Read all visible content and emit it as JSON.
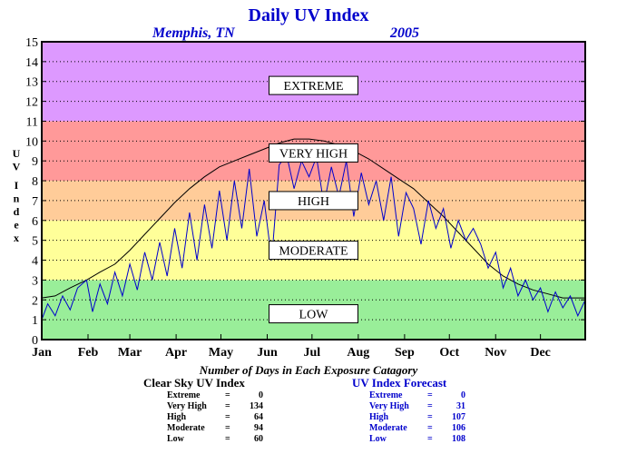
{
  "chart_data": {
    "type": "line",
    "title": "Daily UV Index",
    "subtitle_left": "Memphis, TN",
    "subtitle_right": "2005",
    "ylabel": "UV Index",
    "ylim": [
      0,
      15
    ],
    "yticks": [
      0,
      1,
      2,
      3,
      4,
      5,
      6,
      7,
      8,
      9,
      10,
      11,
      12,
      13,
      14,
      15
    ],
    "xlim": [
      1,
      365
    ],
    "months": [
      "Jan",
      "Feb",
      "Mar",
      "Apr",
      "May",
      "Jun",
      "Jul",
      "Aug",
      "Sep",
      "Oct",
      "Nov",
      "Dec"
    ],
    "month_start_days": [
      1,
      32,
      60,
      91,
      121,
      152,
      182,
      213,
      244,
      274,
      305,
      335
    ],
    "bands": [
      {
        "label": "LOW",
        "from": 0,
        "to": 3,
        "color": "#99ee99"
      },
      {
        "label": "MODERATE",
        "from": 3,
        "to": 6,
        "color": "#ffff99"
      },
      {
        "label": "HIGH",
        "from": 6,
        "to": 8,
        "color": "#ffcc99"
      },
      {
        "label": "VERY HIGH",
        "from": 8,
        "to": 11,
        "color": "#ff9999"
      },
      {
        "label": "EXTREME",
        "from": 11,
        "to": 15,
        "color": "#dd99ff"
      }
    ],
    "band_label_values": [
      1.3,
      4.5,
      7.0,
      9.4,
      12.8
    ],
    "series": [
      {
        "name": "Clear Sky UV Index",
        "color": "#000000",
        "x": [
          1,
          10,
          20,
          31,
          40,
          50,
          60,
          70,
          80,
          90,
          100,
          110,
          120,
          130,
          140,
          150,
          160,
          170,
          180,
          190,
          200,
          210,
          220,
          230,
          240,
          250,
          260,
          270,
          280,
          290,
          300,
          310,
          320,
          330,
          340,
          350,
          365
        ],
        "y": [
          2.1,
          2.2,
          2.6,
          3.0,
          3.4,
          3.8,
          4.5,
          5.3,
          6.1,
          6.9,
          7.6,
          8.2,
          8.7,
          9.0,
          9.3,
          9.6,
          9.9,
          10.1,
          10.1,
          10.0,
          9.8,
          9.5,
          9.1,
          8.6,
          8.1,
          7.6,
          6.9,
          6.2,
          5.4,
          4.6,
          3.8,
          3.2,
          2.8,
          2.5,
          2.3,
          2.1,
          2.1
        ]
      },
      {
        "name": "UV Index Forecast",
        "color": "#0000cc",
        "x": [
          1,
          5,
          10,
          15,
          20,
          25,
          31,
          35,
          40,
          45,
          50,
          55,
          60,
          65,
          70,
          75,
          80,
          85,
          90,
          95,
          100,
          105,
          110,
          115,
          120,
          125,
          130,
          135,
          140,
          145,
          150,
          155,
          160,
          165,
          170,
          175,
          180,
          185,
          190,
          195,
          200,
          205,
          210,
          215,
          220,
          225,
          230,
          235,
          240,
          245,
          250,
          255,
          260,
          265,
          270,
          275,
          280,
          285,
          290,
          295,
          300,
          305,
          310,
          315,
          320,
          325,
          330,
          335,
          340,
          345,
          350,
          355,
          360,
          365
        ],
        "y": [
          1.0,
          1.8,
          1.2,
          2.2,
          1.5,
          2.6,
          3.0,
          1.4,
          2.8,
          1.8,
          3.4,
          2.2,
          3.8,
          2.5,
          4.4,
          3.0,
          4.9,
          3.2,
          5.6,
          3.6,
          6.4,
          4.0,
          6.8,
          4.6,
          7.5,
          5.0,
          8.0,
          5.6,
          8.6,
          5.2,
          7.0,
          4.0,
          8.8,
          9.3,
          7.6,
          9.0,
          8.2,
          9.2,
          6.8,
          8.7,
          7.2,
          9.0,
          6.2,
          8.4,
          6.8,
          8.0,
          6.0,
          8.2,
          5.2,
          7.4,
          6.6,
          4.8,
          7.0,
          5.6,
          6.6,
          4.6,
          6.0,
          5.0,
          5.6,
          4.8,
          3.6,
          4.4,
          2.6,
          3.6,
          2.2,
          3.0,
          2.0,
          2.6,
          1.4,
          2.4,
          1.6,
          2.2,
          1.2,
          2.0
        ]
      }
    ]
  },
  "summary": {
    "heading": "Number of Days in Each Exposure Catagory",
    "clear_sky": {
      "title": "Clear Sky UV Index",
      "rows": [
        {
          "label": "Extreme",
          "value": "0"
        },
        {
          "label": "Very High",
          "value": "134"
        },
        {
          "label": "High",
          "value": "64"
        },
        {
          "label": "Moderate",
          "value": "94"
        },
        {
          "label": "Low",
          "value": "60"
        }
      ]
    },
    "forecast": {
      "title": "UV Index Forecast",
      "rows": [
        {
          "label": "Extreme",
          "value": "0"
        },
        {
          "label": "Very High",
          "value": "31"
        },
        {
          "label": "High",
          "value": "107"
        },
        {
          "label": "Moderate",
          "value": "106"
        },
        {
          "label": "Low",
          "value": "108"
        }
      ]
    },
    "colors": {
      "clear_sky": "#000000",
      "forecast": "#0000cc",
      "title": "#0000cc"
    }
  }
}
